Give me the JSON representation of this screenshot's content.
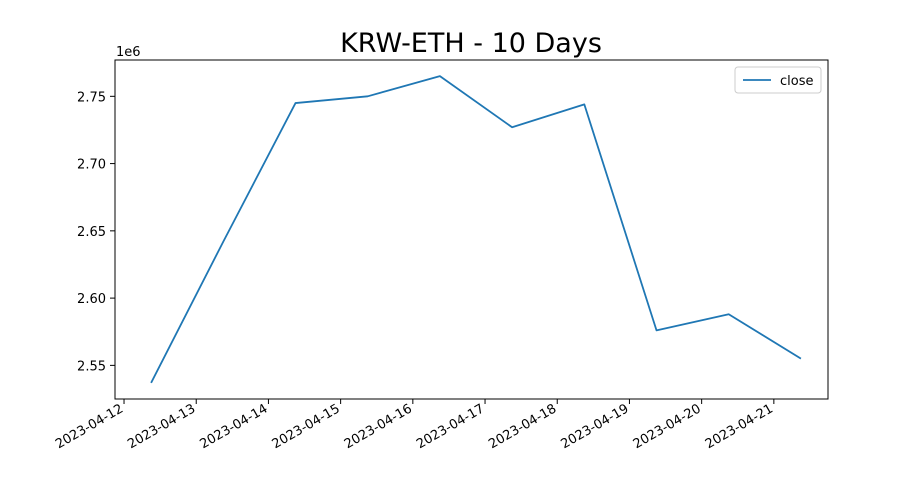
{
  "chart_data": {
    "type": "line",
    "title": "KRW-ETH - 10 Days",
    "xlabel": "",
    "ylabel": "",
    "y_offset_label": "1e6",
    "y_multiplier": 1000000,
    "x_ticks": [
      "2023-04-12",
      "2023-04-13",
      "2023-04-14",
      "2023-04-15",
      "2023-04-16",
      "2023-04-17",
      "2023-04-18",
      "2023-04-19",
      "2023-04-20",
      "2023-04-21"
    ],
    "y_ticks": [
      "2.55",
      "2.60",
      "2.65",
      "2.70",
      "2.75"
    ],
    "y_tick_values": [
      2550000,
      2600000,
      2650000,
      2700000,
      2750000
    ],
    "xlim": [
      "2023-04-11T21:00:00",
      "2023-04-21T18:00:00"
    ],
    "ylim": [
      2525000,
      2777000
    ],
    "series": [
      {
        "name": "close",
        "color": "#1f77b4",
        "x": [
          "2023-04-12T09:00:00",
          "2023-04-13T09:00:00",
          "2023-04-14T09:00:00",
          "2023-04-15T09:00:00",
          "2023-04-16T09:00:00",
          "2023-04-17T09:00:00",
          "2023-04-18T09:00:00",
          "2023-04-19T09:00:00",
          "2023-04-20T09:00:00",
          "2023-04-21T09:00:00"
        ],
        "values": [
          2537000,
          2642000,
          2745000,
          2750000,
          2765000,
          2727000,
          2744000,
          2576000,
          2588000,
          2555000
        ]
      }
    ],
    "legend_position": "top-right",
    "grid": false
  }
}
